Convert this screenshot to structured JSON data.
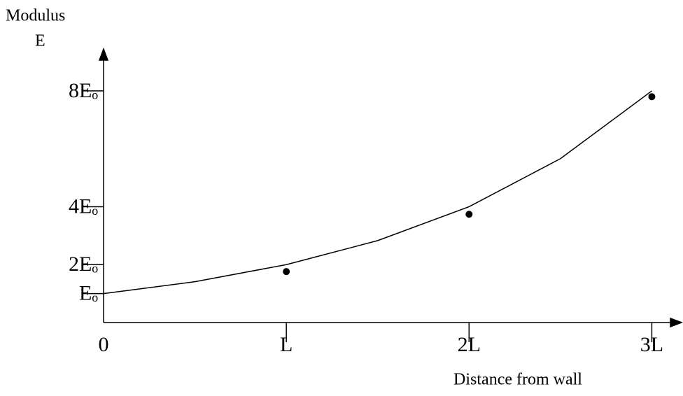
{
  "chart_data": {
    "type": "line",
    "ylabel": [
      "Modulus",
      "E"
    ],
    "xlabel": "Distance from wall",
    "xlim": [
      0,
      3.14
    ],
    "ylim": [
      0,
      9.4
    ],
    "xticks": [
      0,
      {
        "value": 1,
        "label": "L"
      },
      {
        "value": 2,
        "label": "2L"
      },
      {
        "value": 3,
        "label": "3L"
      }
    ],
    "yticks": [
      {
        "value": 1,
        "label": "Eₒ"
      },
      {
        "value": 2,
        "label": "2Eₒ"
      },
      {
        "value": 4,
        "label": "4Eₒ"
      },
      {
        "value": 8,
        "label": "8Eₒ"
      }
    ],
    "series": [
      {
        "mode": "line",
        "color": "#000000",
        "x": [
          0,
          0.5,
          1,
          1.5,
          2,
          2.5,
          3
        ],
        "values": [
          1,
          1.41,
          2,
          2.83,
          4,
          5.66,
          8
        ]
      },
      {
        "mode": "markers",
        "color": "#000000",
        "x": [
          1,
          2,
          3
        ],
        "values": [
          1.76,
          3.74,
          7.8
        ]
      }
    ]
  }
}
